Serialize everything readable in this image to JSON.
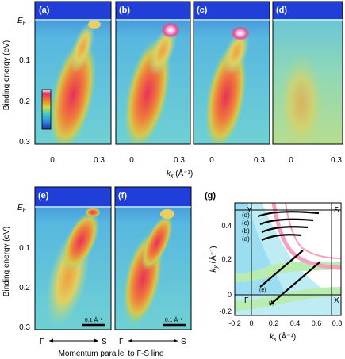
{
  "panels_top": [
    {
      "label": "(a)"
    },
    {
      "label": "(b)"
    },
    {
      "label": "(c)"
    },
    {
      "label": "(d)"
    }
  ],
  "panels_bottom": [
    {
      "label": "(e)",
      "scalebar": "0.1 Å⁻¹"
    },
    {
      "label": "(f)",
      "scalebar": "0.1 Å⁻¹"
    }
  ],
  "top": {
    "ylabel": "Binding energy (eV)",
    "y_ticks": [
      "E",
      "0.1",
      "0.2",
      "0.3"
    ],
    "ef_sub": "F",
    "x_ticks": [
      "0",
      "0.3"
    ],
    "xlabel_main": "k",
    "xlabel_sub": "x",
    "xlabel_unit": " (Å⁻¹)"
  },
  "bottom": {
    "ylabel": "Binding energy (eV)",
    "y_ticks": [
      "E",
      "0.1",
      "0.2",
      "0.3"
    ],
    "ef_sub": "F",
    "x_start": "Γ",
    "x_end": "S",
    "xlabel": "Momentum parallel to Γ-S line"
  },
  "panel_g": {
    "label": "(g)",
    "corner_Y": "Y",
    "corner_S": "S",
    "corner_Gamma": "Γ",
    "corner_X": "X",
    "cut_labels": [
      "(d)",
      "(c)",
      "(b)",
      "(a)",
      "(e)",
      "(f)"
    ],
    "x_ticks": [
      "-0.2",
      "0",
      "0.2",
      "0.4",
      "0.6",
      "0.8"
    ],
    "y_ticks": [
      "0.4",
      "0.2",
      "0",
      "-0.2"
    ],
    "xlabel": "k",
    "xlabel_sub": "x",
    "xlabel_unit": " (Å⁻¹)",
    "ylabel": "k",
    "ylabel_sub": "y",
    "ylabel_unit": " (Å⁻¹)"
  }
}
